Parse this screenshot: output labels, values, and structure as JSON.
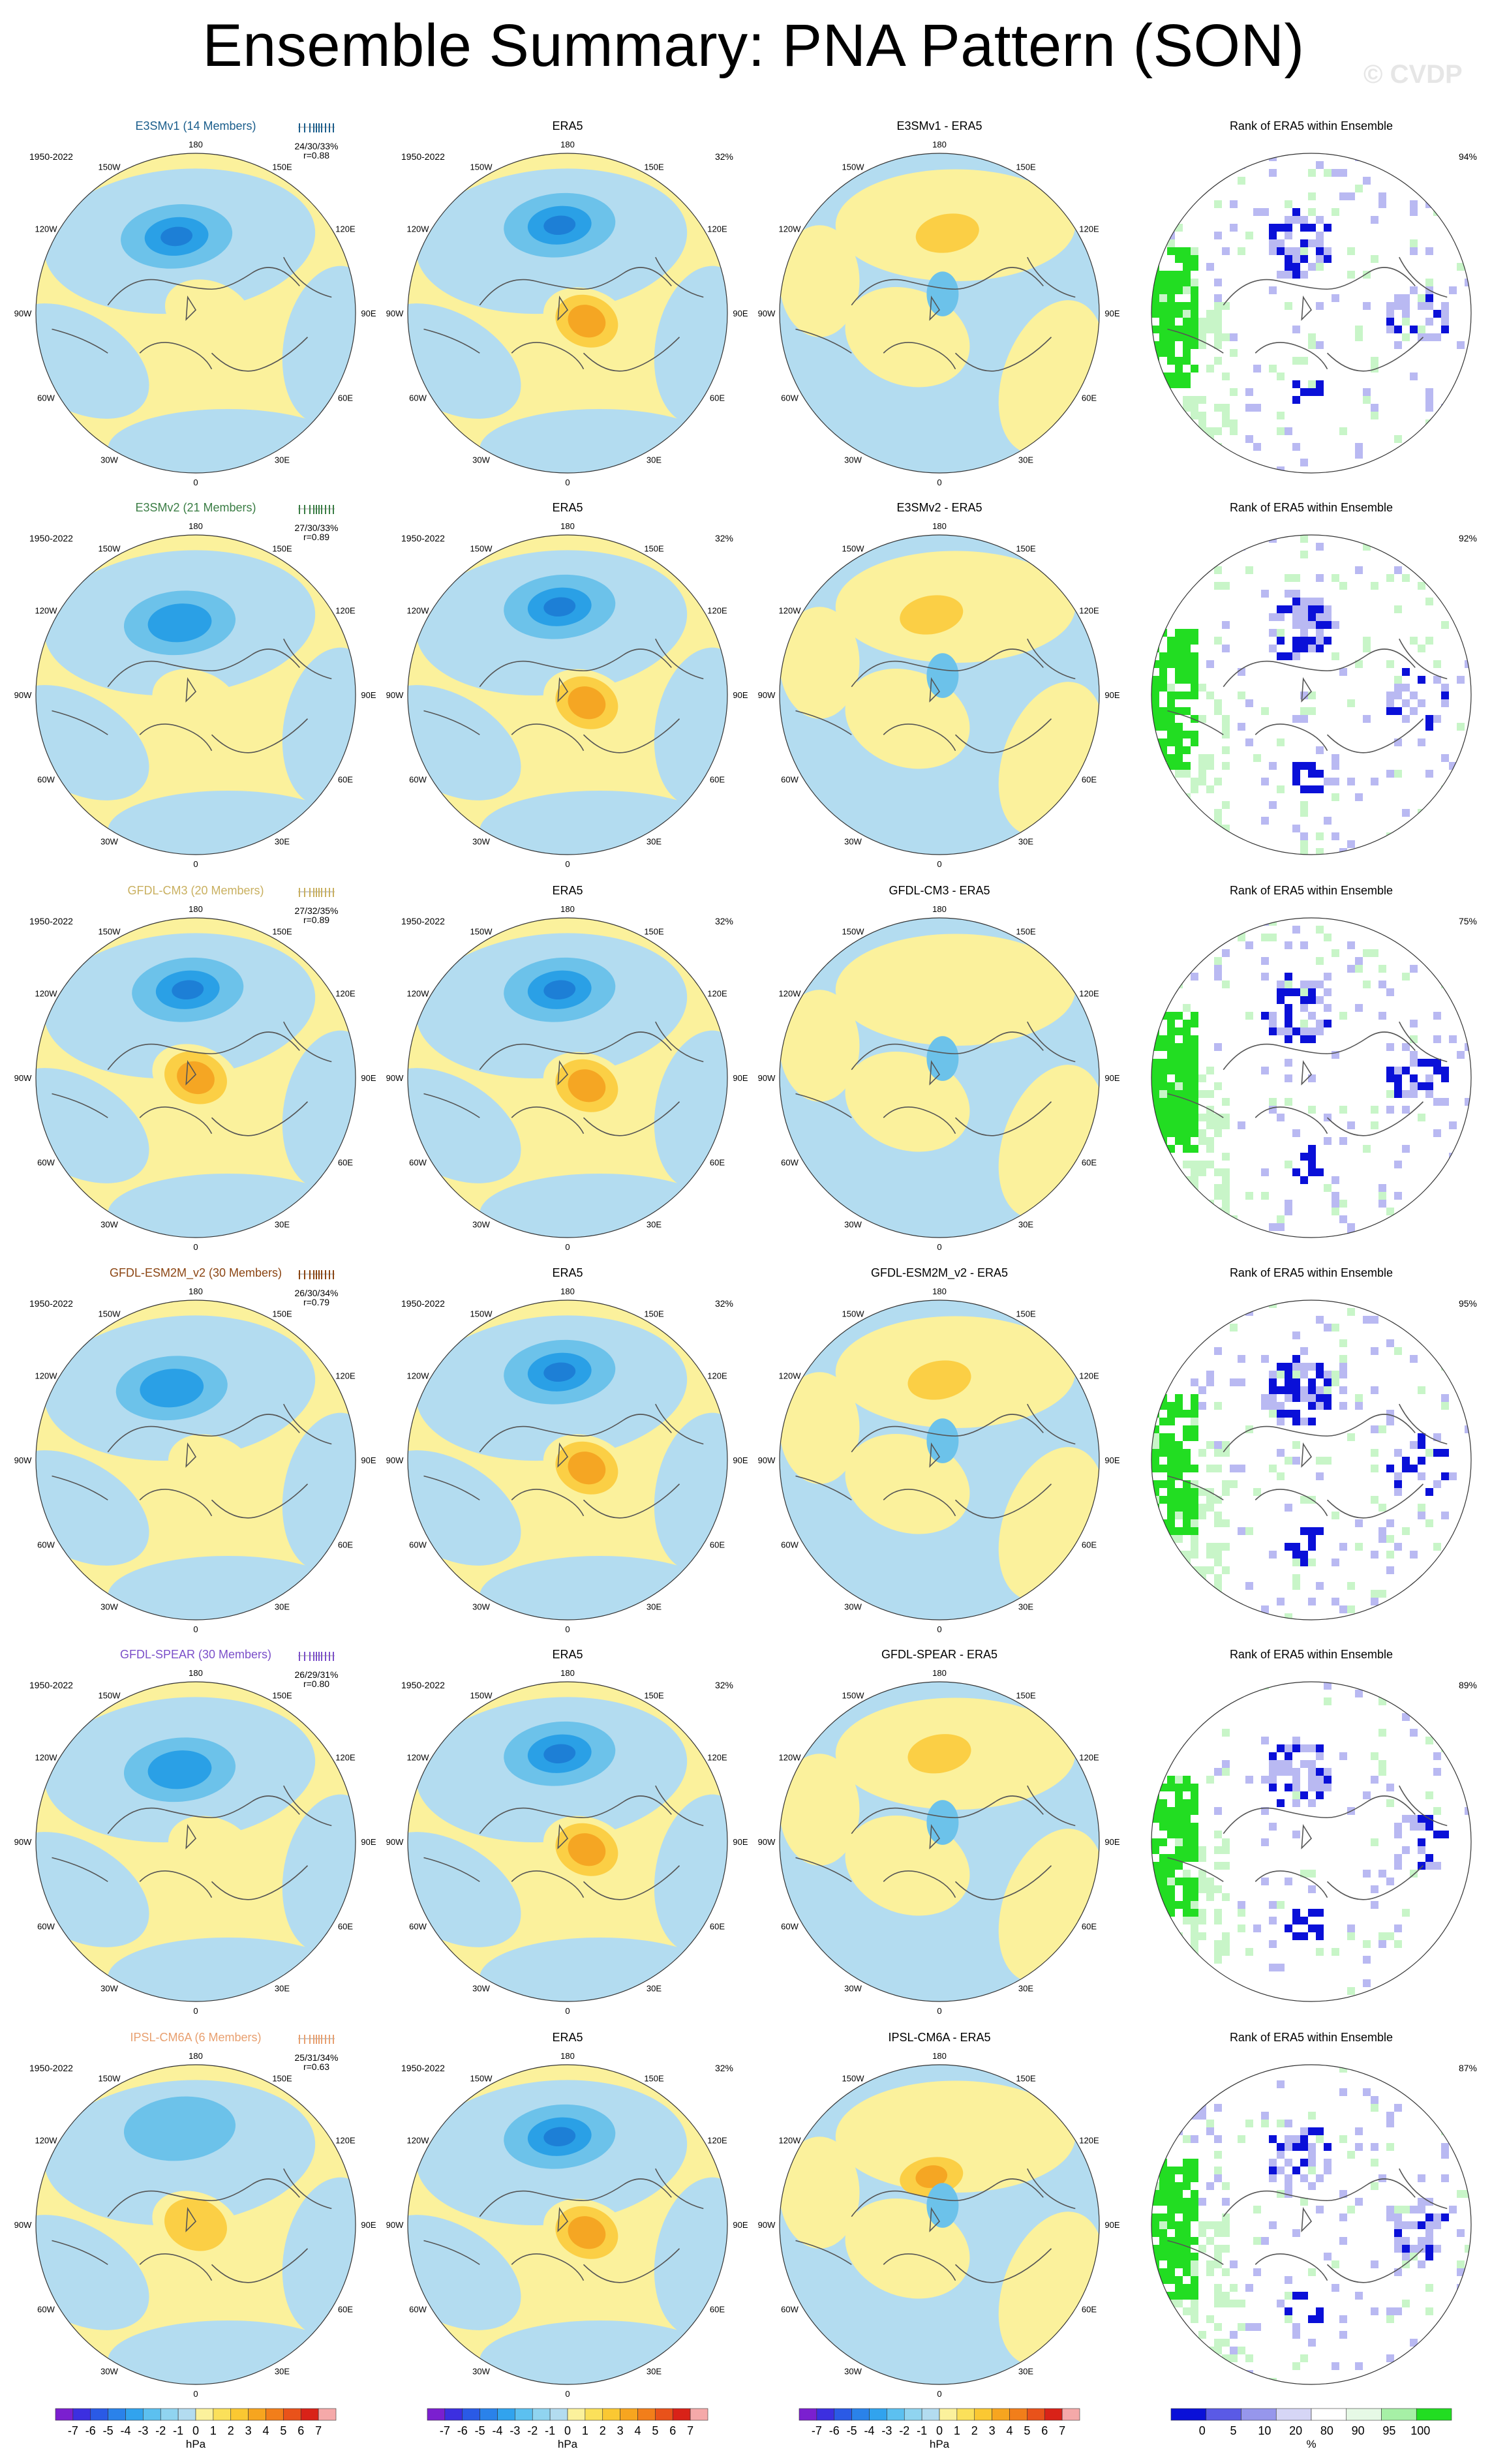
{
  "title": "Ensemble Summary: PNA Pattern (SON)",
  "watermark": "© CVDP",
  "colors": {
    "neg_light": "#b3dcf0",
    "neg_mid": "#6cc2ea",
    "neg_strong": "#2aa0e6",
    "neg_core": "#1d7fd6",
    "pos_light": "#fbf19c",
    "pos_mid": "#fbcf45",
    "pos_strong": "#f5a623",
    "rank_green": "#22dd22",
    "rank_lightgreen": "#c8f5c8",
    "rank_blue": "#0a10d8",
    "rank_lightblue": "#b9b9f2"
  },
  "period": "1950-2022",
  "lon_labels": {
    "top": "180",
    "ul": "150W",
    "ur": "150E",
    "ml_up": "120W",
    "mr_up": "120E",
    "left": "90W",
    "right": "90E",
    "ml_down": "60W",
    "mr_down": "60E",
    "ll": "30W",
    "lr": "30E",
    "bottom": "0"
  },
  "rows": [
    {
      "model": "E3SMv1 (14 Members)",
      "model_color": "#1b5e8c",
      "stats": "24/30/33%",
      "r": "r=0.88",
      "obs_pct": "32%",
      "diff_title": "E3SMv1 - ERA5",
      "rank_title": "Rank of ERA5 within Ensemble",
      "rank_pct": "94%",
      "pattern": {
        "low_x": -0.12,
        "low_y": -0.48,
        "low_strength": 3,
        "high_x": 0.08,
        "high_y": 0.0,
        "high_strength": 0
      },
      "diff": {
        "blob_x": 0.05,
        "blob_y": -0.5,
        "sign": "pos",
        "strength": 1
      }
    },
    {
      "model": "E3SMv2 (21 Members)",
      "model_color": "#3a7d44",
      "stats": "27/30/33%",
      "r": "r=0.89",
      "obs_pct": "32%",
      "diff_title": "E3SMv2 - ERA5",
      "rank_title": "Rank of ERA5 within Ensemble",
      "rank_pct": "92%",
      "pattern": {
        "low_x": -0.1,
        "low_y": -0.45,
        "low_strength": 2,
        "high_x": 0.0,
        "high_y": 0.05,
        "high_strength": 0
      },
      "diff": {
        "blob_x": -0.05,
        "blob_y": -0.5,
        "sign": "pos",
        "strength": 1
      }
    },
    {
      "model": "GFDL-CM3 (20 Members)",
      "model_color": "#c9b060",
      "stats": "27/32/35%",
      "r": "r=0.89",
      "obs_pct": "32%",
      "diff_title": "GFDL-CM3 - ERA5",
      "rank_title": "Rank of ERA5 within Ensemble",
      "rank_pct": "75%",
      "pattern": {
        "low_x": -0.05,
        "low_y": -0.55,
        "low_strength": 3,
        "high_x": 0.0,
        "high_y": 0.0,
        "high_strength": 2
      },
      "diff": {
        "blob_x": -0.2,
        "blob_y": 0.2,
        "sign": "pos",
        "strength": 0
      }
    },
    {
      "model": "GFDL-ESM2M_v2 (30 Members)",
      "model_color": "#8b4513",
      "stats": "26/30/34%",
      "r": "r=0.79",
      "obs_pct": "32%",
      "diff_title": "GFDL-ESM2M_v2 - ERA5",
      "rank_title": "Rank of ERA5 within Ensemble",
      "rank_pct": "95%",
      "pattern": {
        "low_x": -0.15,
        "low_y": -0.45,
        "low_strength": 2,
        "high_x": 0.1,
        "high_y": 0.05,
        "high_strength": 0
      },
      "diff": {
        "blob_x": 0.0,
        "blob_y": -0.5,
        "sign": "pos",
        "strength": 1
      }
    },
    {
      "model": "GFDL-SPEAR (30 Members)",
      "model_color": "#7b4fc9",
      "stats": "26/29/31%",
      "r": "r=0.80",
      "obs_pct": "32%",
      "diff_title": "GFDL-SPEAR - ERA5",
      "rank_title": "Rank of ERA5 within Ensemble",
      "rank_pct": "89%",
      "pattern": {
        "low_x": -0.1,
        "low_y": -0.45,
        "low_strength": 2,
        "high_x": 0.1,
        "high_y": 0.05,
        "high_strength": 0
      },
      "diff": {
        "blob_x": 0.0,
        "blob_y": -0.55,
        "sign": "pos",
        "strength": 1
      }
    },
    {
      "model": "IPSL-CM6A (6 Members)",
      "model_color": "#e8a070",
      "stats": "25/31/34%",
      "r": "r=0.63",
      "obs_pct": "32%",
      "diff_title": "IPSL-CM6A - ERA5",
      "rank_title": "Rank of ERA5 within Ensemble",
      "rank_pct": "87%",
      "pattern": {
        "low_x": -0.1,
        "low_y": -0.6,
        "low_strength": 1,
        "high_x": 0.0,
        "high_y": 0.0,
        "high_strength": 1
      },
      "diff": {
        "blob_x": -0.05,
        "blob_y": -0.3,
        "sign": "pos",
        "strength": 2
      }
    }
  ],
  "obs_title": "ERA5",
  "colorbar_hpa": {
    "labels": [
      "-7",
      "-6",
      "-5",
      "-4",
      "-3",
      "-2",
      "-1",
      "0",
      "1",
      "2",
      "3",
      "4",
      "5",
      "6",
      "7"
    ],
    "unit": "hPa",
    "colors": [
      "#7b1fd0",
      "#3c2fe0",
      "#2a5ae6",
      "#2a82ea",
      "#31a3ee",
      "#5cc0f0",
      "#90d4f0",
      "#b3dcf0",
      "#fbf19c",
      "#fbe05a",
      "#fbc832",
      "#f7a51f",
      "#f27e1a",
      "#e9521a",
      "#d92218",
      "#f5a9a9"
    ]
  },
  "colorbar_rank": {
    "labels": [
      "0",
      "5",
      "10",
      "20",
      "80",
      "90",
      "95",
      "100"
    ],
    "unit": "%",
    "colors": [
      "#0a10d8",
      "#5a5ae6",
      "#9696ec",
      "#d6d6f6",
      "#ffffff",
      "#e6f9e6",
      "#a6f0a6",
      "#22dd22"
    ]
  }
}
